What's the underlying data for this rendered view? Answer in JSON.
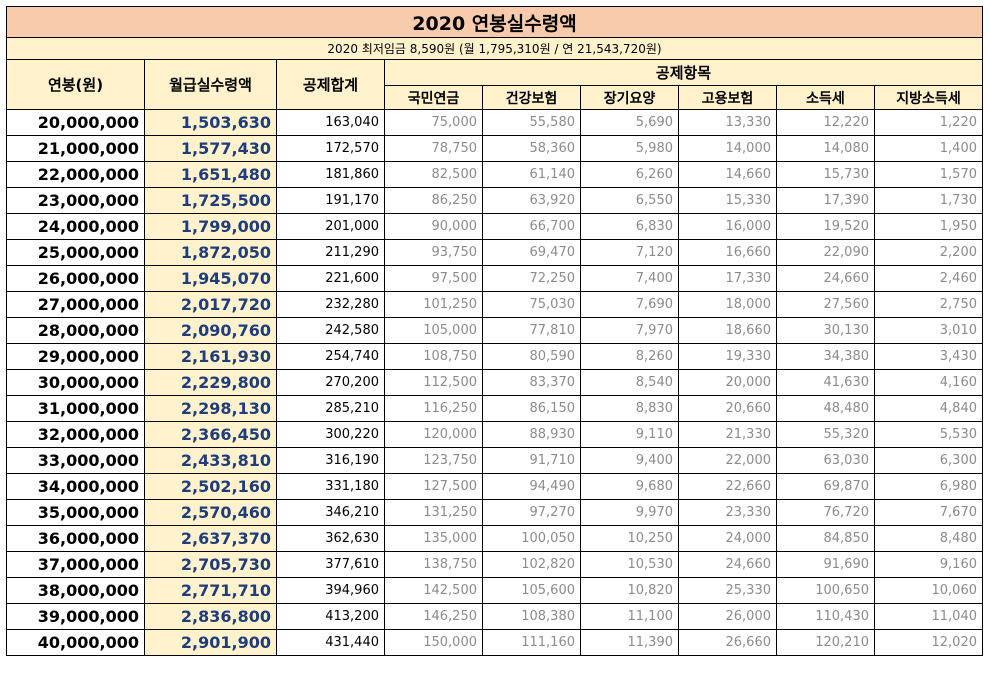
{
  "title": "2020 연봉실수령액",
  "subtitle": "2020 최저임금 8,590원 (월 1,795,310원 / 연 21,543,720원)",
  "headers": {
    "salary": "연봉(원)",
    "net_monthly": "월급실수령액",
    "deduction_total": "공제합계",
    "deduction_items": "공제항목",
    "items": [
      "국민연금",
      "건강보험",
      "장기요양",
      "고용보험",
      "소득세",
      "지방소득세"
    ]
  },
  "rows": [
    {
      "salary": "20,000,000",
      "net": "1,503,630",
      "total": "163,040",
      "items": [
        "75,000",
        "55,580",
        "5,690",
        "13,330",
        "12,220",
        "1,220"
      ]
    },
    {
      "salary": "21,000,000",
      "net": "1,577,430",
      "total": "172,570",
      "items": [
        "78,750",
        "58,360",
        "5,980",
        "14,000",
        "14,080",
        "1,400"
      ]
    },
    {
      "salary": "22,000,000",
      "net": "1,651,480",
      "total": "181,860",
      "items": [
        "82,500",
        "61,140",
        "6,260",
        "14,660",
        "15,730",
        "1,570"
      ]
    },
    {
      "salary": "23,000,000",
      "net": "1,725,500",
      "total": "191,170",
      "items": [
        "86,250",
        "63,920",
        "6,550",
        "15,330",
        "17,390",
        "1,730"
      ]
    },
    {
      "salary": "24,000,000",
      "net": "1,799,000",
      "total": "201,000",
      "items": [
        "90,000",
        "66,700",
        "6,830",
        "16,000",
        "19,520",
        "1,950"
      ]
    },
    {
      "salary": "25,000,000",
      "net": "1,872,050",
      "total": "211,290",
      "items": [
        "93,750",
        "69,470",
        "7,120",
        "16,660",
        "22,090",
        "2,200"
      ]
    },
    {
      "salary": "26,000,000",
      "net": "1,945,070",
      "total": "221,600",
      "items": [
        "97,500",
        "72,250",
        "7,400",
        "17,330",
        "24,660",
        "2,460"
      ]
    },
    {
      "salary": "27,000,000",
      "net": "2,017,720",
      "total": "232,280",
      "items": [
        "101,250",
        "75,030",
        "7,690",
        "18,000",
        "27,560",
        "2,750"
      ]
    },
    {
      "salary": "28,000,000",
      "net": "2,090,760",
      "total": "242,580",
      "items": [
        "105,000",
        "77,810",
        "7,970",
        "18,660",
        "30,130",
        "3,010"
      ]
    },
    {
      "salary": "29,000,000",
      "net": "2,161,930",
      "total": "254,740",
      "items": [
        "108,750",
        "80,590",
        "8,260",
        "19,330",
        "34,380",
        "3,430"
      ]
    },
    {
      "salary": "30,000,000",
      "net": "2,229,800",
      "total": "270,200",
      "items": [
        "112,500",
        "83,370",
        "8,540",
        "20,000",
        "41,630",
        "4,160"
      ]
    },
    {
      "salary": "31,000,000",
      "net": "2,298,130",
      "total": "285,210",
      "items": [
        "116,250",
        "86,150",
        "8,830",
        "20,660",
        "48,480",
        "4,840"
      ]
    },
    {
      "salary": "32,000,000",
      "net": "2,366,450",
      "total": "300,220",
      "items": [
        "120,000",
        "88,930",
        "9,110",
        "21,330",
        "55,320",
        "5,530"
      ]
    },
    {
      "salary": "33,000,000",
      "net": "2,433,810",
      "total": "316,190",
      "items": [
        "123,750",
        "91,710",
        "9,400",
        "22,000",
        "63,030",
        "6,300"
      ]
    },
    {
      "salary": "34,000,000",
      "net": "2,502,160",
      "total": "331,180",
      "items": [
        "127,500",
        "94,490",
        "9,680",
        "22,660",
        "69,870",
        "6,980"
      ]
    },
    {
      "salary": "35,000,000",
      "net": "2,570,460",
      "total": "346,210",
      "items": [
        "131,250",
        "97,270",
        "9,970",
        "23,330",
        "76,720",
        "7,670"
      ]
    },
    {
      "salary": "36,000,000",
      "net": "2,637,370",
      "total": "362,630",
      "items": [
        "135,000",
        "100,050",
        "10,250",
        "24,000",
        "84,850",
        "8,480"
      ]
    },
    {
      "salary": "37,000,000",
      "net": "2,705,730",
      "total": "377,610",
      "items": [
        "138,750",
        "102,820",
        "10,530",
        "24,660",
        "91,690",
        "9,160"
      ]
    },
    {
      "salary": "38,000,000",
      "net": "2,771,710",
      "total": "394,960",
      "items": [
        "142,500",
        "105,600",
        "10,820",
        "25,330",
        "100,650",
        "10,060"
      ]
    },
    {
      "salary": "39,000,000",
      "net": "2,836,800",
      "total": "413,200",
      "items": [
        "146,250",
        "108,380",
        "11,100",
        "26,000",
        "110,430",
        "11,040"
      ]
    },
    {
      "salary": "40,000,000",
      "net": "2,901,900",
      "total": "431,440",
      "items": [
        "150,000",
        "111,160",
        "11,390",
        "26,660",
        "120,210",
        "12,020"
      ]
    }
  ]
}
